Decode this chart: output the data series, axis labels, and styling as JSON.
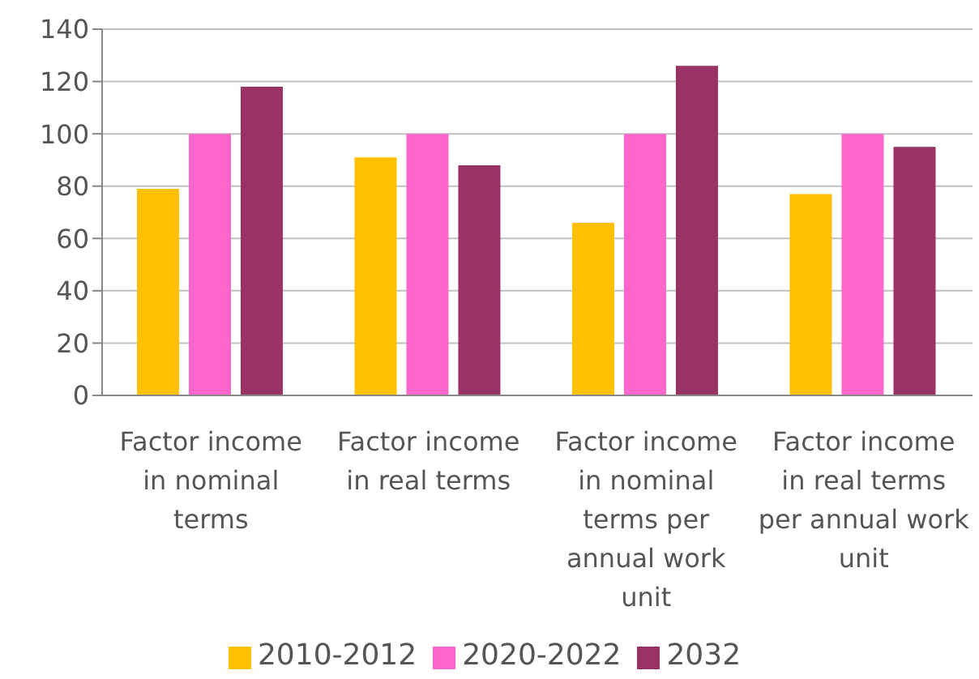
{
  "chart_data": {
    "type": "bar",
    "categories": [
      "Factor income in nominal terms",
      "Factor income in real terms",
      "Factor income in nominal terms per annual work unit",
      "Factor income in real terms per annual work unit"
    ],
    "series": [
      {
        "name": "2010-2012",
        "color": "#ffc000",
        "values": [
          79,
          91,
          66,
          77
        ]
      },
      {
        "name": "2020-2022",
        "color": "#ff66cc",
        "values": [
          100,
          100,
          100,
          100
        ]
      },
      {
        "name": "2032",
        "color": "#993366",
        "values": [
          118,
          88,
          126,
          95
        ]
      }
    ],
    "ylim": [
      0,
      140
    ],
    "yticks": [
      0,
      20,
      40,
      60,
      80,
      100,
      120,
      140
    ],
    "grid": "y",
    "legend": "bottom"
  }
}
